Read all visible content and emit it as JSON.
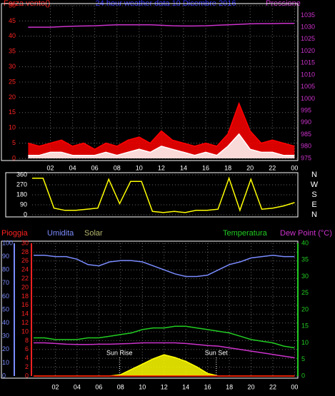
{
  "chart_data": [
    {
      "type": "line",
      "title": "24 hour weather data  10 Dicembre 2016",
      "ylabel": "Forza vento()",
      "y2label": "Pressione",
      "x": [
        0,
        1,
        2,
        3,
        4,
        5,
        6,
        7,
        8,
        9,
        10,
        11,
        12,
        13,
        14,
        15,
        16,
        17,
        18,
        19,
        20,
        21,
        22,
        23,
        24
      ],
      "xlim": [
        -0.8,
        24.3
      ],
      "xticks": [
        {
          "value": 2,
          "label": "02"
        },
        {
          "value": 4,
          "label": "04"
        },
        {
          "value": 6,
          "label": "06"
        },
        {
          "value": 8,
          "label": "08"
        },
        10,
        12,
        14,
        16,
        18,
        20,
        22,
        {
          "value": 24,
          "label": "00"
        }
      ],
      "ylim": [
        0,
        50
      ],
      "yticks": [
        0,
        5,
        10,
        15,
        20,
        25,
        30,
        35,
        40,
        45,
        50
      ],
      "y2lim": [
        975,
        1039
      ],
      "y2ticks": [
        975,
        980,
        985,
        990,
        995,
        1000,
        1005,
        1010,
        1015,
        1020,
        1025,
        1030,
        1035
      ],
      "grid": true,
      "series": [
        {
          "color": "#ff0000",
          "fill": true,
          "values": [
            5,
            4,
            5,
            6,
            4,
            5,
            3,
            5,
            4,
            6,
            7,
            5,
            9,
            6,
            5,
            4,
            5,
            4,
            8,
            18,
            9,
            5,
            6,
            5,
            4
          ]
        },
        {
          "color": "#ffffff",
          "fill": true,
          "values": [
            1,
            1,
            2,
            2,
            1,
            1,
            1,
            2,
            1,
            2,
            3,
            2,
            4,
            3,
            2,
            1,
            2,
            1,
            4,
            8,
            3,
            2,
            2,
            1,
            1
          ]
        },
        {
          "color": "#cc33cc",
          "axis": "y2",
          "values": [
            1030,
            1030,
            1030,
            1030.2,
            1030.4,
            1030.5,
            1030.6,
            1030.8,
            1031,
            1031,
            1031,
            1031,
            1030.8,
            1030.6,
            1030.5,
            1030.5,
            1030.6,
            1030.8,
            1031,
            1031.2,
            1031.4,
            1031.5,
            1031.5,
            1031.6,
            1031.6
          ]
        }
      ]
    },
    {
      "type": "line",
      "x": [
        0,
        1,
        2,
        3,
        4,
        5,
        6,
        7,
        8,
        9,
        10,
        11,
        12,
        13,
        14,
        15,
        16,
        17,
        18,
        19,
        20,
        21,
        22,
        23,
        24
      ],
      "xlim": [
        0,
        24.3
      ],
      "ylim": [
        0,
        360
      ],
      "yticks": [
        0,
        90,
        180,
        270,
        360
      ],
      "y2lim": [
        0,
        360
      ],
      "y2ticks": [
        {
          "value": 360,
          "label": "N"
        },
        {
          "value": 270,
          "label": "W"
        },
        {
          "value": 180,
          "label": "S"
        },
        {
          "value": 90,
          "label": "E"
        },
        {
          "value": 0,
          "label": "N"
        }
      ],
      "grid": true,
      "series": [
        {
          "color": "#ffff00",
          "values": [
            330,
            330,
            60,
            40,
            40,
            50,
            60,
            320,
            100,
            300,
            300,
            30,
            20,
            30,
            20,
            40,
            40,
            50,
            330,
            40,
            320,
            50,
            60,
            80,
            110
          ]
        }
      ]
    },
    {
      "type": "line",
      "ylabel": "Pioggia",
      "y3label": "Umidita",
      "solarlabel": "Solar",
      "y2label": "Temperatura",
      "dewlabel": "Dew Point (°C)",
      "x": [
        0,
        1,
        2,
        3,
        4,
        5,
        6,
        7,
        8,
        9,
        10,
        11,
        12,
        13,
        14,
        15,
        16,
        17,
        18,
        19,
        20,
        21,
        22,
        23,
        24
      ],
      "xlim": [
        0,
        24.3
      ],
      "xticks": [
        {
          "value": 2,
          "label": "02"
        },
        {
          "value": 4,
          "label": "04"
        },
        {
          "value": 6,
          "label": "06"
        },
        {
          "value": 8,
          "label": "08"
        },
        10,
        12,
        14,
        16,
        18,
        20,
        22,
        {
          "value": 24,
          "label": "00"
        }
      ],
      "ylim": [
        0,
        30
      ],
      "yticks": [
        0,
        2,
        4,
        6,
        8,
        10,
        12,
        14,
        16,
        18,
        20,
        22,
        24,
        26,
        28,
        30
      ],
      "y3lim": [
        0,
        100
      ],
      "y3ticks": [
        0,
        10,
        20,
        30,
        40,
        50,
        60,
        70,
        80,
        90,
        100
      ],
      "y2lim": [
        0,
        40
      ],
      "y2ticks": [
        0,
        5,
        10,
        15,
        20,
        25,
        30,
        35,
        40
      ],
      "grid": true,
      "annotations": [
        {
          "text": "Sun Rise",
          "x": 7.9
        },
        {
          "text": "Sun Set",
          "x": 16.8
        }
      ],
      "series": [
        {
          "color": "#ffff00",
          "axis": "y3",
          "fill": true,
          "values": [
            0,
            0,
            0,
            0,
            0,
            0,
            0,
            0,
            1,
            5,
            9,
            13,
            16,
            14,
            11,
            7,
            2,
            0,
            0,
            0,
            0,
            0,
            0,
            0,
            0
          ]
        },
        {
          "color": "#ff0000",
          "values": [
            0,
            0,
            0,
            0,
            0,
            0,
            0,
            0,
            0,
            0,
            0,
            0,
            0,
            0,
            0,
            0,
            0,
            0,
            0,
            0,
            0,
            0,
            0,
            0,
            0
          ]
        },
        {
          "color": "#7a8cff",
          "axis": "y3",
          "values": [
            91,
            91,
            90,
            90,
            88,
            84,
            83,
            86,
            87,
            87,
            86,
            83,
            80,
            77,
            75,
            75,
            76,
            80,
            84,
            86,
            89,
            90,
            91,
            90,
            90
          ]
        },
        {
          "color": "#22cc22",
          "axis": "y2",
          "values": [
            11.5,
            11.5,
            11,
            11,
            11,
            11.5,
            11.5,
            12,
            12.5,
            13,
            14,
            14.5,
            14.5,
            15,
            15,
            14.5,
            14,
            13.5,
            13,
            12,
            11,
            10.5,
            10,
            9,
            8.5
          ]
        },
        {
          "color": "#cc33cc",
          "axis": "y2",
          "values": [
            10,
            10,
            9.8,
            9.6,
            9.5,
            9.5,
            9.6,
            9.6,
            9.7,
            9.8,
            10,
            10,
            10,
            10,
            9.8,
            9.5,
            9.2,
            9,
            8.5,
            8,
            7.5,
            7,
            6.5,
            6,
            5.5
          ]
        }
      ]
    }
  ]
}
